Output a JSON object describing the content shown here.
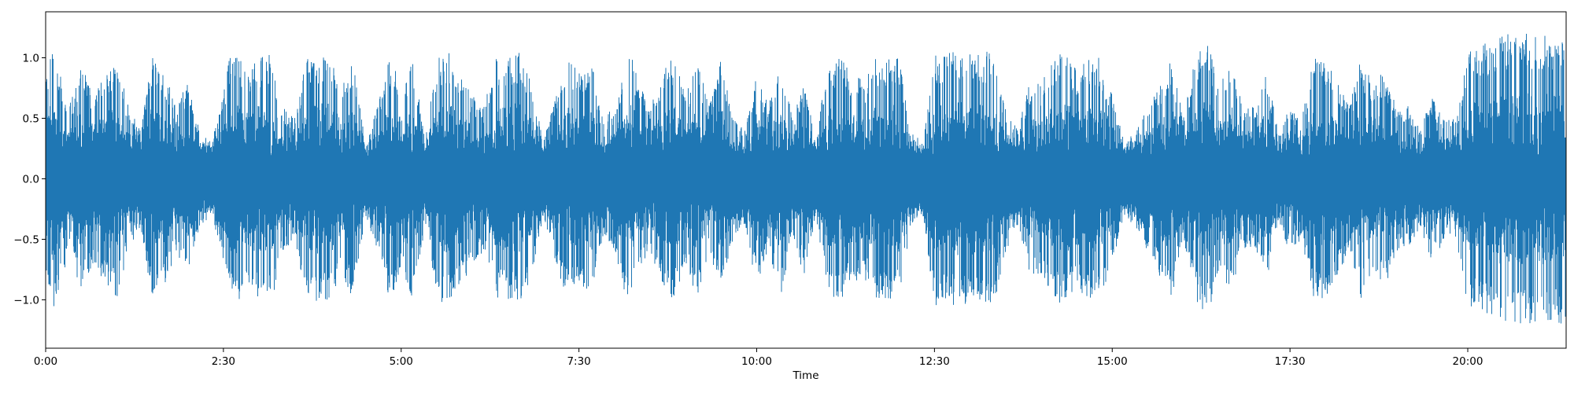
{
  "chart_data": {
    "type": "line",
    "title": "",
    "xlabel": "Time",
    "ylabel": "",
    "xlim": [
      0,
      1283
    ],
    "ylim": [
      -1.4,
      1.38
    ],
    "grid": false,
    "legend": "none",
    "x_ticks": [
      {
        "value": 0,
        "label": "0:00"
      },
      {
        "value": 150,
        "label": "2:30"
      },
      {
        "value": 300,
        "label": "5:00"
      },
      {
        "value": 450,
        "label": "7:30"
      },
      {
        "value": 600,
        "label": "10:00"
      },
      {
        "value": 750,
        "label": "12:30"
      },
      {
        "value": 900,
        "label": "15:00"
      },
      {
        "value": 1050,
        "label": "17:30"
      },
      {
        "value": 1200,
        "label": "20:00"
      }
    ],
    "y_ticks": [
      {
        "value": 1.0,
        "label": "1.0"
      },
      {
        "value": 0.5,
        "label": "0.5"
      },
      {
        "value": 0.0,
        "label": "0.0"
      },
      {
        "value": -0.5,
        "label": "−0.5"
      },
      {
        "value": -1.0,
        "label": "−1.0"
      }
    ],
    "series": [
      {
        "color": "#1f77b4",
        "envelope_time_s": [
          0,
          5,
          10,
          20,
          30,
          40,
          50,
          60,
          70,
          80,
          90,
          100,
          110,
          120,
          130,
          140,
          150,
          155,
          160,
          170,
          180,
          190,
          200,
          210,
          220,
          230,
          240,
          250,
          260,
          270,
          280,
          290,
          300,
          310,
          320,
          330,
          340,
          350,
          360,
          370,
          380,
          390,
          400,
          410,
          420,
          430,
          440,
          450,
          460,
          470,
          480,
          490,
          495,
          500,
          510,
          520,
          530,
          540,
          550,
          560,
          570,
          580,
          590,
          600,
          610,
          620,
          630,
          640,
          650,
          660,
          670,
          680,
          690,
          700,
          710,
          720,
          730,
          740,
          750,
          760,
          770,
          780,
          790,
          800,
          810,
          820,
          830,
          840,
          850,
          860,
          870,
          880,
          890,
          900,
          910,
          920,
          930,
          940,
          950,
          960,
          970,
          980,
          990,
          1000,
          1010,
          1020,
          1030,
          1040,
          1050,
          1060,
          1070,
          1080,
          1090,
          1100,
          1110,
          1120,
          1130,
          1140,
          1150,
          1160,
          1170,
          1180,
          1190,
          1200,
          1210,
          1220,
          1230,
          1240,
          1250,
          1260,
          1270,
          1283
        ],
        "envelope_amplitude": [
          0.8,
          1.15,
          1.0,
          0.6,
          0.95,
          0.7,
          0.9,
          1.0,
          0.6,
          0.4,
          1.0,
          0.9,
          0.6,
          0.8,
          0.4,
          0.3,
          0.7,
          1.0,
          1.05,
          0.9,
          1.0,
          1.05,
          0.6,
          0.5,
          1.0,
          1.05,
          1.0,
          0.8,
          1.0,
          0.3,
          0.6,
          1.0,
          0.8,
          1.0,
          0.4,
          1.0,
          1.05,
          0.9,
          0.7,
          0.6,
          1.0,
          1.0,
          1.05,
          0.8,
          0.3,
          0.7,
          1.0,
          0.9,
          1.0,
          0.5,
          0.6,
          1.0,
          1.0,
          0.8,
          0.6,
          0.9,
          1.0,
          0.7,
          1.0,
          0.6,
          1.0,
          0.5,
          0.4,
          0.9,
          0.6,
          1.0,
          0.5,
          0.8,
          0.3,
          1.0,
          1.0,
          0.9,
          0.8,
          1.0,
          1.0,
          1.0,
          0.4,
          0.3,
          1.05,
          1.05,
          1.05,
          1.05,
          1.05,
          1.05,
          0.6,
          0.4,
          0.8,
          0.8,
          1.0,
          1.05,
          0.9,
          1.0,
          1.0,
          0.7,
          0.3,
          0.4,
          0.6,
          0.8,
          1.0,
          0.5,
          1.0,
          1.15,
          0.8,
          1.0,
          0.6,
          0.6,
          0.9,
          0.4,
          0.6,
          0.5,
          1.0,
          1.0,
          0.8,
          0.6,
          1.0,
          0.8,
          0.9,
          0.6,
          0.6,
          0.4,
          0.7,
          0.5,
          0.5,
          1.05,
          1.1,
          1.15,
          1.2,
          1.2,
          1.2,
          1.2,
          1.2,
          1.2
        ]
      }
    ]
  }
}
